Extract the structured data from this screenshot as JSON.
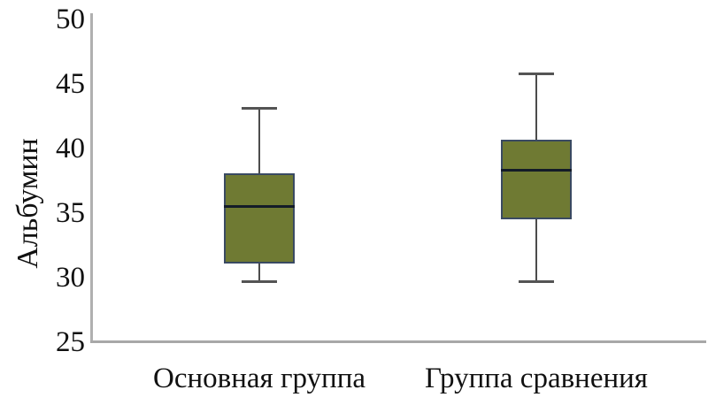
{
  "chart_data": {
    "type": "boxplot",
    "title": "",
    "xlabel": "",
    "ylabel": "Альбумин",
    "ylim": [
      25,
      50
    ],
    "yticks": [
      50,
      45,
      40,
      35,
      30,
      25
    ],
    "grid": false,
    "legend": "none",
    "categories": [
      "Основная группа",
      "Группа сравнения"
    ],
    "series": [
      {
        "name": "Основная группа",
        "whisker_low": 29.7,
        "q1": 31.1,
        "median": 35.5,
        "q3": 38.1,
        "whisker_high": 43.1
      },
      {
        "name": "Группа сравнения",
        "whisker_low": 29.7,
        "q1": 34.5,
        "median": 38.3,
        "q3": 40.7,
        "whisker_high": 45.8
      }
    ],
    "colors": {
      "box_fill": "#6f7a33",
      "box_border": "#3a4a62",
      "median": "#131b28",
      "whisker": "#4c4c4c",
      "axis": "#b0b0b0",
      "text": "#111111"
    }
  }
}
